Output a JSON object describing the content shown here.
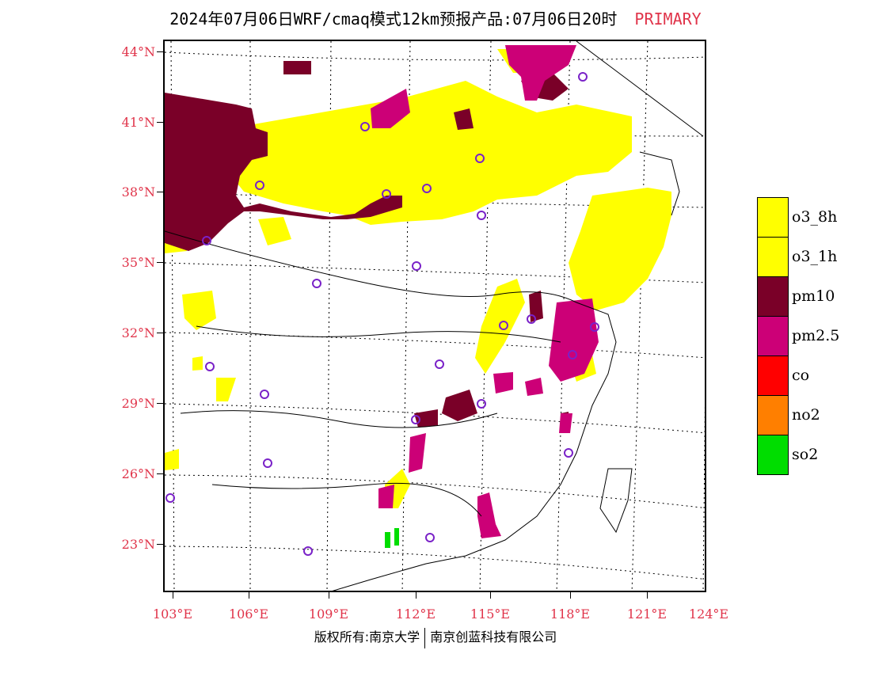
{
  "header": {
    "title": "2024年07月06日WRF/cmaq模式12km预报产品:07月06日20时",
    "product": "PRIMARY"
  },
  "map": {
    "lat_labels": [
      "44°N",
      "41°N",
      "38°N",
      "35°N",
      "32°N",
      "29°N",
      "26°N",
      "23°N"
    ],
    "lon_labels": [
      "103°E",
      "106°E",
      "109°E",
      "112°E",
      "115°E",
      "118°E",
      "121°E",
      "124°E"
    ]
  },
  "legend": {
    "items": [
      {
        "label": "o3_8h",
        "color": "#ffff00"
      },
      {
        "label": "o3_1h",
        "color": "#ffff00"
      },
      {
        "label": "pm10",
        "color": "#7a0028"
      },
      {
        "label": "pm2.5",
        "color": "#cc0077"
      },
      {
        "label": "co",
        "color": "#ff0000"
      },
      {
        "label": "no2",
        "color": "#ff7f00"
      },
      {
        "label": "so2",
        "color": "#00dd00"
      }
    ]
  },
  "footer": {
    "copyright": "版权所有:南京大学",
    "company": "南京创蓝科技有限公司"
  }
}
